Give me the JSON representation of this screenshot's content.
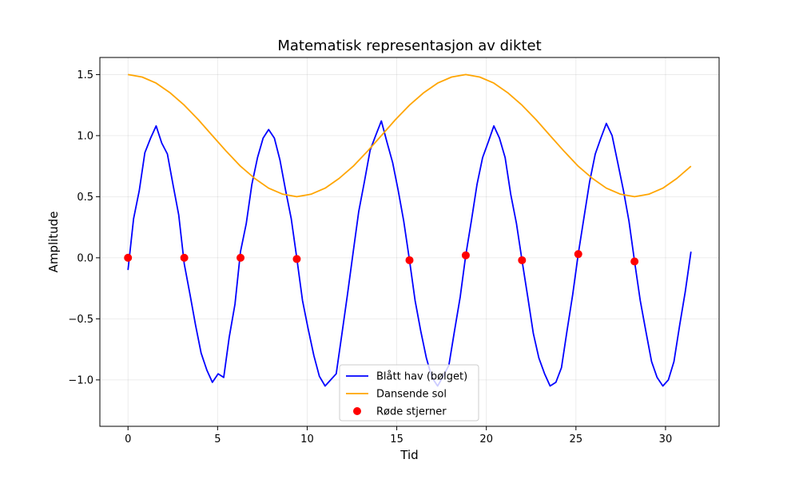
{
  "chart_data": {
    "type": "line",
    "title": "Matematisk representasjon av diktet",
    "xlabel": "Tid",
    "ylabel": "Amplitude",
    "xlim": [
      -1.57,
      32.99
    ],
    "ylim": [
      -1.38,
      1.64
    ],
    "xticks": [
      0,
      5,
      10,
      15,
      20,
      25,
      30
    ],
    "xtick_labels": [
      "0",
      "5",
      "10",
      "15",
      "20",
      "25",
      "30"
    ],
    "yticks": [
      -1.0,
      -0.5,
      0.0,
      0.5,
      1.0,
      1.5
    ],
    "ytick_labels": [
      "−1.0",
      "−0.5",
      "0.0",
      "0.5",
      "1.0",
      "1.5"
    ],
    "grid": true,
    "legend_position": "lower center",
    "series": [
      {
        "name": "Blått hav (bølget)",
        "kind": "line",
        "color": "#0000ff",
        "x": [
          0,
          0.31,
          0.63,
          0.94,
          1.26,
          1.57,
          1.88,
          2.2,
          2.51,
          2.83,
          3.14,
          3.46,
          3.77,
          4.08,
          4.4,
          4.71,
          5.03,
          5.34,
          5.65,
          5.97,
          6.28,
          6.6,
          6.91,
          7.23,
          7.54,
          7.85,
          8.17,
          8.48,
          8.8,
          9.11,
          9.42,
          9.74,
          10.05,
          10.37,
          10.68,
          11.0,
          11.31,
          11.62,
          11.94,
          12.25,
          12.57,
          12.88,
          13.19,
          13.51,
          13.82,
          14.14,
          14.45,
          14.77,
          15.08,
          15.39,
          15.71,
          16.02,
          16.34,
          16.65,
          16.96,
          17.28,
          17.59,
          17.91,
          18.22,
          18.54,
          18.85,
          19.16,
          19.48,
          19.79,
          20.11,
          20.42,
          20.73,
          21.05,
          21.36,
          21.68,
          21.99,
          22.31,
          22.62,
          22.93,
          23.25,
          23.56,
          23.88,
          24.19,
          24.5,
          24.82,
          25.13,
          25.45,
          25.76,
          26.08,
          26.39,
          26.7,
          27.02,
          27.33,
          27.65,
          27.96,
          28.27,
          28.59,
          28.9,
          29.22,
          29.53,
          29.85,
          30.16,
          30.47,
          30.79,
          31.1,
          31.42
        ],
        "y": [
          -0.1,
          0.32,
          0.55,
          0.86,
          0.98,
          1.08,
          0.94,
          0.85,
          0.6,
          0.35,
          -0.05,
          -0.3,
          -0.55,
          -0.78,
          -0.92,
          -1.02,
          -0.95,
          -0.98,
          -0.65,
          -0.38,
          0.05,
          0.28,
          0.6,
          0.82,
          0.98,
          1.05,
          0.98,
          0.8,
          0.55,
          0.32,
          0.0,
          -0.35,
          -0.58,
          -0.8,
          -0.97,
          -1.05,
          -1.0,
          -0.95,
          -0.62,
          -0.3,
          0.05,
          0.38,
          0.62,
          0.88,
          1.0,
          1.12,
          0.95,
          0.78,
          0.55,
          0.3,
          -0.02,
          -0.35,
          -0.6,
          -0.82,
          -0.98,
          -1.05,
          -0.97,
          -0.88,
          -0.6,
          -0.32,
          0.02,
          0.3,
          0.6,
          0.82,
          0.95,
          1.08,
          0.98,
          0.82,
          0.52,
          0.28,
          -0.02,
          -0.32,
          -0.62,
          -0.82,
          -0.95,
          -1.05,
          -1.02,
          -0.9,
          -0.6,
          -0.3,
          0.03,
          0.33,
          0.62,
          0.85,
          0.98,
          1.1,
          1.0,
          0.78,
          0.55,
          0.3,
          -0.03,
          -0.35,
          -0.6,
          -0.85,
          -0.98,
          -1.05,
          -1.0,
          -0.85,
          -0.55,
          -0.28,
          0.05
        ]
      },
      {
        "name": "Dansende sol",
        "kind": "line",
        "color": "#ffa500",
        "x": [
          0,
          0.79,
          1.57,
          2.36,
          3.14,
          3.93,
          4.71,
          5.5,
          6.28,
          7.07,
          7.85,
          8.64,
          9.42,
          10.21,
          11.0,
          11.78,
          12.57,
          13.35,
          14.14,
          14.92,
          15.71,
          16.49,
          17.28,
          18.06,
          18.85,
          19.63,
          20.42,
          21.21,
          21.99,
          22.78,
          23.56,
          24.35,
          25.13,
          25.92,
          26.7,
          27.49,
          28.27,
          29.06,
          29.85,
          30.63,
          31.42
        ],
        "y": [
          1.5,
          1.48,
          1.43,
          1.35,
          1.25,
          1.13,
          1.0,
          0.87,
          0.75,
          0.65,
          0.57,
          0.52,
          0.5,
          0.52,
          0.57,
          0.65,
          0.75,
          0.87,
          1.0,
          1.13,
          1.25,
          1.35,
          1.43,
          1.48,
          1.5,
          1.48,
          1.43,
          1.35,
          1.25,
          1.13,
          1.0,
          0.87,
          0.75,
          0.65,
          0.57,
          0.52,
          0.5,
          0.52,
          0.57,
          0.65,
          0.75
        ]
      },
      {
        "name": "Røde stjerner",
        "kind": "scatter",
        "color": "#ff0000",
        "x": [
          0,
          3.14,
          6.28,
          9.42,
          15.71,
          18.85,
          21.99,
          25.13,
          28.27
        ],
        "y": [
          0.0,
          0.0,
          0.0,
          -0.01,
          -0.02,
          0.02,
          -0.02,
          0.03,
          -0.03
        ]
      }
    ]
  }
}
